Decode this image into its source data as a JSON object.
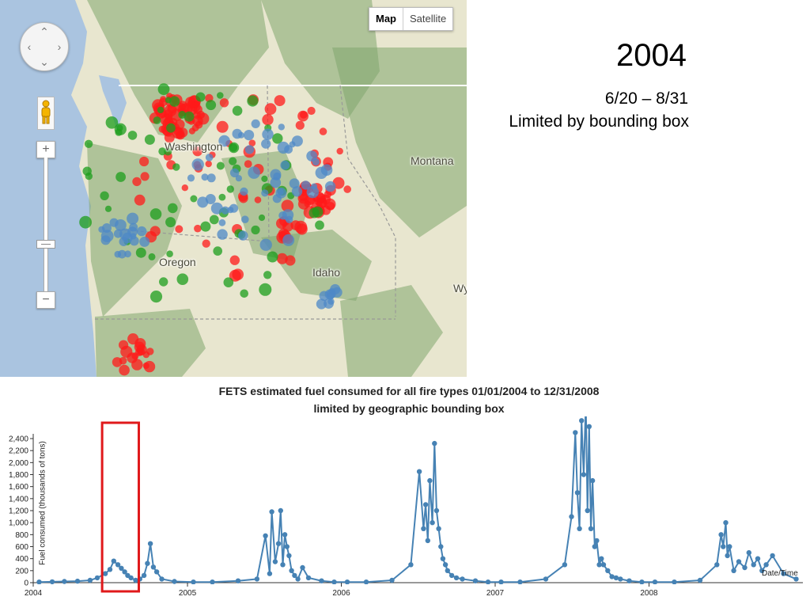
{
  "map": {
    "labels": {
      "washington": "Washington",
      "montana": "Montana",
      "oregon": "Oregon",
      "idaho": "Idaho",
      "wyoming": "Wy"
    },
    "map_type": {
      "map": "Map",
      "satellite": "Satellite",
      "selected": "Map"
    },
    "controls": {
      "zoom_in": "+",
      "zoom_out": "−",
      "pan_up": "⌃",
      "pan_down": "⌄",
      "pan_left": "‹",
      "pan_right": "›"
    },
    "colors": {
      "water": "#aac4e0",
      "land": "#e8e6cf",
      "forest": "#7fa56e",
      "fire_red": "#ff1a1a",
      "fire_green": "#1c9e1c",
      "fire_blue": "#4d88c7"
    }
  },
  "slide": {
    "year": "2004",
    "date_range": "6/20 – 8/31",
    "note": "Limited by bounding box"
  },
  "chart_data": {
    "type": "line",
    "title": "FETS estimated fuel consumed for all fire types 01/01/2004 to 12/31/2008",
    "subtitle": "limited by geographic bounding box",
    "ylabel": "Fuel consumed (thousands of tons)",
    "xlabel": "Date/Time",
    "ylim": [
      0,
      2500
    ],
    "xlim": [
      "2004-01-01",
      "2008-12-31"
    ],
    "y_ticks": [
      "0",
      "200",
      "400",
      "600",
      "800",
      "1,000",
      "1,200",
      "1,400",
      "1,600",
      "1,800",
      "2,000",
      "2,200",
      "2,400"
    ],
    "x_ticks": [
      "2004",
      "2005",
      "2006",
      "2007",
      "2008"
    ],
    "highlight": {
      "from": "2004-06-20",
      "to": "2004-08-31",
      "color": "#e0191b"
    },
    "series_color": "#4682b4",
    "series": [
      {
        "x": [
          "2004-01-15",
          "2004-02-15",
          "2004-03-15",
          "2004-04-15",
          "2004-05-15",
          "2004-06-01",
          "2004-06-20",
          "2004-07-01",
          "2004-07-10",
          "2004-07-20",
          "2004-07-28",
          "2004-08-05",
          "2004-08-12",
          "2004-08-20",
          "2004-08-31",
          "2004-09-10",
          "2004-09-20",
          "2004-09-28",
          "2004-10-05",
          "2004-10-12",
          "2004-10-20",
          "2004-11-01",
          "2004-12-01",
          "2005-01-15",
          "2005-03-01",
          "2005-05-01",
          "2005-06-15",
          "2005-07-05",
          "2005-07-15",
          "2005-07-20",
          "2005-07-28",
          "2005-08-05",
          "2005-08-10",
          "2005-08-15",
          "2005-08-20",
          "2005-08-25",
          "2005-08-30",
          "2005-09-05",
          "2005-09-12",
          "2005-09-20",
          "2005-10-01",
          "2005-10-15",
          "2005-11-15",
          "2005-12-15",
          "2006-01-15",
          "2006-03-01",
          "2006-05-01",
          "2006-06-15",
          "2006-07-05",
          "2006-07-15",
          "2006-07-20",
          "2006-07-25",
          "2006-07-30",
          "2006-08-05",
          "2006-08-10",
          "2006-08-15",
          "2006-08-20",
          "2006-08-25",
          "2006-08-30",
          "2006-09-05",
          "2006-09-10",
          "2006-09-20",
          "2006-10-01",
          "2006-10-15",
          "2006-11-15",
          "2006-12-15",
          "2007-01-15",
          "2007-03-01",
          "2007-05-01",
          "2007-06-15",
          "2007-07-01",
          "2007-07-10",
          "2007-07-15",
          "2007-07-20",
          "2007-07-25",
          "2007-07-30",
          "2007-08-04",
          "2007-08-08",
          "2007-08-12",
          "2007-08-16",
          "2007-08-20",
          "2007-08-25",
          "2007-08-30",
          "2007-09-05",
          "2007-09-10",
          "2007-09-15",
          "2007-09-25",
          "2007-10-05",
          "2007-10-15",
          "2007-10-25",
          "2007-11-15",
          "2007-12-15",
          "2008-01-15",
          "2008-03-01",
          "2008-05-01",
          "2008-06-10",
          "2008-06-20",
          "2008-06-25",
          "2008-07-01",
          "2008-07-05",
          "2008-07-10",
          "2008-07-20",
          "2008-08-01",
          "2008-08-15",
          "2008-08-25",
          "2008-09-05",
          "2008-09-15",
          "2008-09-25",
          "2008-10-05",
          "2008-10-20",
          "2008-11-15",
          "2008-12-15"
        ],
        "y": [
          10,
          15,
          20,
          25,
          40,
          80,
          150,
          220,
          360,
          300,
          240,
          180,
          120,
          80,
          40,
          60,
          120,
          320,
          650,
          260,
          180,
          60,
          20,
          10,
          10,
          30,
          60,
          780,
          150,
          1180,
          350,
          650,
          1200,
          300,
          800,
          600,
          450,
          200,
          120,
          60,
          250,
          80,
          30,
          10,
          10,
          10,
          40,
          300,
          1850,
          900,
          1300,
          700,
          1700,
          1000,
          2320,
          1200,
          900,
          600,
          400,
          300,
          200,
          120,
          80,
          60,
          30,
          10,
          10,
          10,
          60,
          300,
          1100,
          2500,
          1500,
          900,
          2700,
          1800,
          3000,
          1200,
          2600,
          900,
          1700,
          600,
          700,
          300,
          400,
          300,
          200,
          100,
          80,
          60,
          30,
          10,
          10,
          10,
          40,
          300,
          800,
          600,
          1000,
          450,
          600,
          200,
          350,
          250,
          500,
          300,
          400,
          200,
          300,
          450,
          150,
          60
        ]
      }
    ]
  }
}
